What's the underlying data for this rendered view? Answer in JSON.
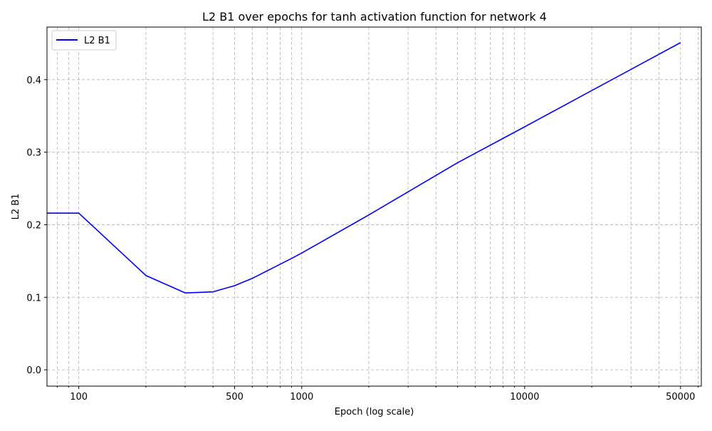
{
  "chart_data": {
    "type": "line",
    "title": "L2 B1 over epochs for tanh activation function for network 4",
    "xlabel": "Epoch (log scale)",
    "ylabel": "L2 B1",
    "xscale": "log",
    "xlim": [
      72,
      62000
    ],
    "ylim": [
      -0.0225,
      0.4725
    ],
    "xticks": [
      {
        "value": 100,
        "label": "100"
      },
      {
        "value": 500,
        "label": "500"
      },
      {
        "value": 1000,
        "label": "1000"
      },
      {
        "value": 10000,
        "label": "10000"
      },
      {
        "value": 50000,
        "label": "50000"
      }
    ],
    "x_minor_gridlines": [
      80,
      90,
      200,
      300,
      400,
      600,
      700,
      800,
      900,
      2000,
      3000,
      4000,
      5000,
      6000,
      7000,
      8000,
      9000,
      20000,
      30000,
      40000,
      60000
    ],
    "yticks": [
      {
        "value": 0.0,
        "label": "0.0"
      },
      {
        "value": 0.1,
        "label": "0.1"
      },
      {
        "value": 0.2,
        "label": "0.2"
      },
      {
        "value": 0.3,
        "label": "0.3"
      },
      {
        "value": 0.4,
        "label": "0.4"
      }
    ],
    "grid": true,
    "legend": "upper-left",
    "series": [
      {
        "name": "L2 B1",
        "color": "#0000ff",
        "x": [
          72,
          100,
          200,
          300,
          400,
          500,
          600,
          700,
          800,
          900,
          1000,
          2000,
          5000,
          10000,
          20000,
          50000
        ],
        "y": [
          0.216,
          0.216,
          0.13,
          0.106,
          0.1075,
          0.116,
          0.126,
          0.1365,
          0.1455,
          0.1535,
          0.161,
          0.2135,
          0.2855,
          0.335,
          0.385,
          0.451
        ]
      }
    ]
  }
}
